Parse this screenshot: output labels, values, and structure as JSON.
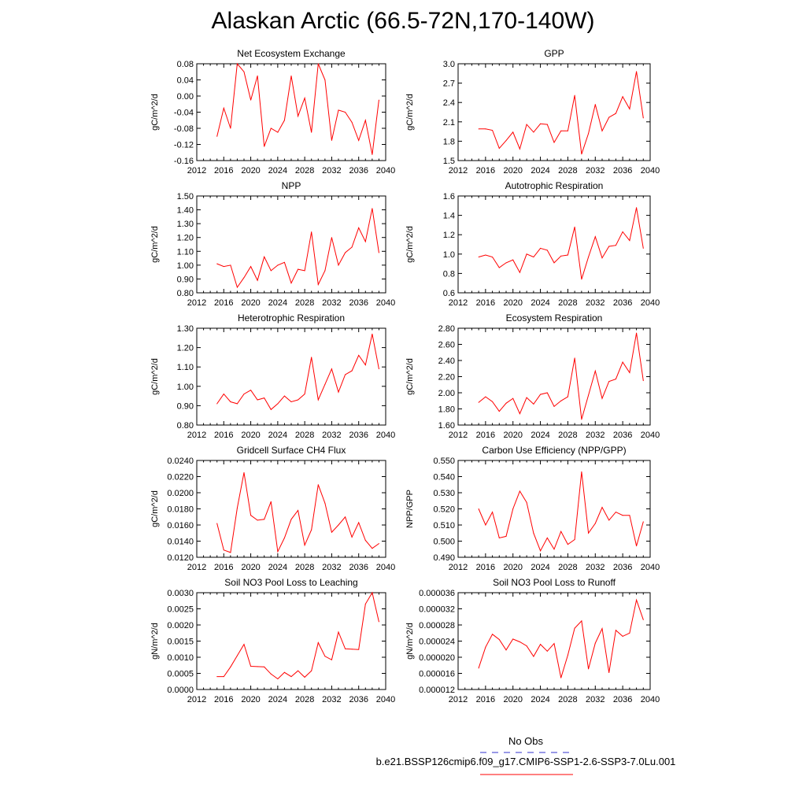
{
  "title": "Alaskan Arctic (66.5-72N,170-140W)",
  "colors": {
    "series": "#ff0000",
    "obs": "#3333cc",
    "axis": "#000000"
  },
  "legend": {
    "obs_label": "No Obs",
    "model_label": "b.e21.BSSP126cmip6.f09_g17.CMIP6-SSP1-2.6-SSP3-7.0Lu.001"
  },
  "chart_data": [
    {
      "type": "line",
      "title": "Net Ecosystem Exchange",
      "ylabel": "gC/m^2/d",
      "xlim": [
        2012,
        2040
      ],
      "ylim": [
        -0.16,
        0.08
      ],
      "xticks": [
        "2012",
        "2016",
        "2020",
        "2024",
        "2028",
        "2032",
        "2036",
        "2040"
      ],
      "yticks": [
        "-0.16",
        "-0.12",
        "-0.08",
        "-0.04",
        "0.00",
        "0.04",
        "0.08"
      ],
      "x": [
        2015,
        2016,
        2017,
        2018,
        2019,
        2020,
        2021,
        2022,
        2023,
        2024,
        2025,
        2026,
        2027,
        2028,
        2029,
        2030,
        2031,
        2032,
        2033,
        2034,
        2035,
        2036,
        2037,
        2038,
        2039
      ],
      "y": [
        -0.1,
        -0.03,
        -0.08,
        0.08,
        0.06,
        -0.01,
        0.05,
        -0.125,
        -0.08,
        -0.09,
        -0.06,
        0.05,
        -0.05,
        -0.005,
        -0.09,
        0.08,
        0.04,
        -0.11,
        -0.035,
        -0.04,
        -0.065,
        -0.11,
        -0.06,
        -0.145,
        -0.01
      ]
    },
    {
      "type": "line",
      "title": "GPP",
      "ylabel": "gC/m^2/d",
      "xlim": [
        2012,
        2040
      ],
      "ylim": [
        1.5,
        3.0
      ],
      "xticks": [
        "2012",
        "2016",
        "2020",
        "2024",
        "2028",
        "2032",
        "2036",
        "2040"
      ],
      "yticks": [
        "1.5",
        "1.8",
        "2.1",
        "2.4",
        "2.7",
        "3.0"
      ],
      "x": [
        2015,
        2016,
        2017,
        2018,
        2019,
        2020,
        2021,
        2022,
        2023,
        2024,
        2025,
        2026,
        2027,
        2028,
        2029,
        2030,
        2031,
        2032,
        2033,
        2034,
        2035,
        2036,
        2037,
        2038,
        2039
      ],
      "y": [
        1.99,
        1.99,
        1.97,
        1.69,
        1.81,
        1.94,
        1.68,
        2.06,
        1.94,
        2.07,
        2.06,
        1.78,
        1.96,
        1.96,
        2.51,
        1.6,
        1.92,
        2.37,
        1.96,
        2.17,
        2.23,
        2.49,
        2.3,
        2.88,
        2.16
      ]
    },
    {
      "type": "line",
      "title": "NPP",
      "ylabel": "gC/m^2/d",
      "xlim": [
        2012,
        2040
      ],
      "ylim": [
        0.8,
        1.5
      ],
      "xticks": [
        "2012",
        "2016",
        "2020",
        "2024",
        "2028",
        "2032",
        "2036",
        "2040"
      ],
      "yticks": [
        "0.80",
        "0.90",
        "1.00",
        "1.10",
        "1.20",
        "1.30",
        "1.40",
        "1.50"
      ],
      "x": [
        2015,
        2016,
        2017,
        2018,
        2019,
        2020,
        2021,
        2022,
        2023,
        2024,
        2025,
        2026,
        2027,
        2028,
        2029,
        2030,
        2031,
        2032,
        2033,
        2034,
        2035,
        2036,
        2037,
        2038,
        2039
      ],
      "y": [
        1.01,
        0.99,
        1.0,
        0.84,
        0.91,
        0.99,
        0.89,
        1.06,
        0.96,
        1.0,
        1.02,
        0.87,
        0.97,
        0.96,
        1.24,
        0.86,
        0.96,
        1.2,
        1.0,
        1.09,
        1.13,
        1.27,
        1.17,
        1.41,
        1.09
      ]
    },
    {
      "type": "line",
      "title": "Autotrophic Respiration",
      "ylabel": "gC/m^2/d",
      "xlim": [
        2012,
        2040
      ],
      "ylim": [
        0.6,
        1.6
      ],
      "xticks": [
        "2012",
        "2016",
        "2020",
        "2024",
        "2028",
        "2032",
        "2036",
        "2040"
      ],
      "yticks": [
        "0.6",
        "0.8",
        "1.0",
        "1.2",
        "1.4",
        "1.6"
      ],
      "x": [
        2015,
        2016,
        2017,
        2018,
        2019,
        2020,
        2021,
        2022,
        2023,
        2024,
        2025,
        2026,
        2027,
        2028,
        2029,
        2030,
        2031,
        2032,
        2033,
        2034,
        2035,
        2036,
        2037,
        2038,
        2039
      ],
      "y": [
        0.97,
        0.99,
        0.97,
        0.86,
        0.91,
        0.94,
        0.81,
        1.0,
        0.97,
        1.06,
        1.04,
        0.91,
        0.98,
        0.99,
        1.28,
        0.74,
        0.97,
        1.18,
        0.96,
        1.08,
        1.09,
        1.23,
        1.14,
        1.48,
        1.06
      ]
    },
    {
      "type": "line",
      "title": "Heterotrophic Respiration",
      "ylabel": "gC/m^2/d",
      "xlim": [
        2012,
        2040
      ],
      "ylim": [
        0.8,
        1.3
      ],
      "xticks": [
        "2012",
        "2016",
        "2020",
        "2024",
        "2028",
        "2032",
        "2036",
        "2040"
      ],
      "yticks": [
        "0.80",
        "0.90",
        "1.00",
        "1.10",
        "1.20",
        "1.30"
      ],
      "x": [
        2015,
        2016,
        2017,
        2018,
        2019,
        2020,
        2021,
        2022,
        2023,
        2024,
        2025,
        2026,
        2027,
        2028,
        2029,
        2030,
        2031,
        2032,
        2033,
        2034,
        2035,
        2036,
        2037,
        2038,
        2039
      ],
      "y": [
        0.91,
        0.96,
        0.92,
        0.91,
        0.96,
        0.98,
        0.93,
        0.94,
        0.88,
        0.91,
        0.95,
        0.92,
        0.93,
        0.96,
        1.15,
        0.93,
        1.01,
        1.09,
        0.97,
        1.06,
        1.08,
        1.16,
        1.11,
        1.27,
        1.09
      ]
    },
    {
      "type": "line",
      "title": "Ecosystem Respiration",
      "ylabel": "gC/m^2/d",
      "xlim": [
        2012,
        2040
      ],
      "ylim": [
        1.6,
        2.8
      ],
      "xticks": [
        "2012",
        "2016",
        "2020",
        "2024",
        "2028",
        "2032",
        "2036",
        "2040"
      ],
      "yticks": [
        "1.60",
        "1.80",
        "2.00",
        "2.20",
        "2.40",
        "2.60",
        "2.80"
      ],
      "x": [
        2015,
        2016,
        2017,
        2018,
        2019,
        2020,
        2021,
        2022,
        2023,
        2024,
        2025,
        2026,
        2027,
        2028,
        2029,
        2030,
        2031,
        2032,
        2033,
        2034,
        2035,
        2036,
        2037,
        2038,
        2039
      ],
      "y": [
        1.88,
        1.95,
        1.89,
        1.77,
        1.87,
        1.93,
        1.74,
        1.94,
        1.86,
        1.98,
        2.0,
        1.83,
        1.9,
        1.95,
        2.43,
        1.67,
        1.97,
        2.27,
        1.93,
        2.14,
        2.17,
        2.38,
        2.25,
        2.74,
        2.15
      ]
    },
    {
      "type": "line",
      "title": "Gridcell Surface CH4 Flux",
      "ylabel": "gC/m^2/d",
      "xlim": [
        2012,
        2040
      ],
      "ylim": [
        0.012,
        0.024
      ],
      "xticks": [
        "2012",
        "2016",
        "2020",
        "2024",
        "2028",
        "2032",
        "2036",
        "2040"
      ],
      "yticks": [
        "0.0120",
        "0.0140",
        "0.0160",
        "0.0180",
        "0.0200",
        "0.0220",
        "0.0240"
      ],
      "x": [
        2015,
        2016,
        2017,
        2018,
        2019,
        2020,
        2021,
        2022,
        2023,
        2024,
        2025,
        2026,
        2027,
        2028,
        2029,
        2030,
        2031,
        2032,
        2033,
        2034,
        2035,
        2036,
        2037,
        2038,
        2039
      ],
      "y": [
        0.0162,
        0.0129,
        0.0126,
        0.0181,
        0.0225,
        0.0172,
        0.0166,
        0.0167,
        0.0189,
        0.0127,
        0.0144,
        0.0167,
        0.0178,
        0.0135,
        0.0154,
        0.021,
        0.0187,
        0.0151,
        0.016,
        0.017,
        0.0145,
        0.0163,
        0.0141,
        0.0131,
        0.0137
      ]
    },
    {
      "type": "line",
      "title": "Carbon Use Efficiency (NPP/GPP)",
      "ylabel": "NPP/GPP",
      "xlim": [
        2012,
        2040
      ],
      "ylim": [
        0.49,
        0.55
      ],
      "xticks": [
        "2012",
        "2016",
        "2020",
        "2024",
        "2028",
        "2032",
        "2036",
        "2040"
      ],
      "yticks": [
        "0.490",
        "0.500",
        "0.510",
        "0.520",
        "0.530",
        "0.540",
        "0.550"
      ],
      "x": [
        2015,
        2016,
        2017,
        2018,
        2019,
        2020,
        2021,
        2022,
        2023,
        2024,
        2025,
        2026,
        2027,
        2028,
        2029,
        2030,
        2031,
        2032,
        2033,
        2034,
        2035,
        2036,
        2037,
        2038,
        2039
      ],
      "y": [
        0.52,
        0.51,
        0.518,
        0.502,
        0.503,
        0.52,
        0.531,
        0.524,
        0.505,
        0.494,
        0.502,
        0.495,
        0.506,
        0.498,
        0.501,
        0.543,
        0.505,
        0.511,
        0.521,
        0.513,
        0.518,
        0.516,
        0.516,
        0.497,
        0.512
      ]
    },
    {
      "type": "line",
      "title": "Soil NO3 Pool Loss to Leaching",
      "ylabel": "gN/m^2/d",
      "xlim": [
        2012,
        2040
      ],
      "ylim": [
        0.0,
        0.003
      ],
      "xticks": [
        "2012",
        "2016",
        "2020",
        "2024",
        "2028",
        "2032",
        "2036",
        "2040"
      ],
      "yticks": [
        "0.0000",
        "0.0005",
        "0.0010",
        "0.0015",
        "0.0020",
        "0.0025",
        "0.0030"
      ],
      "x": [
        2015,
        2016,
        2017,
        2018,
        2019,
        2020,
        2021,
        2022,
        2023,
        2024,
        2025,
        2026,
        2027,
        2028,
        2029,
        2030,
        2031,
        2032,
        2033,
        2034,
        2035,
        2036,
        2037,
        2038,
        2039
      ],
      "y": [
        0.0004,
        0.0004,
        0.0007,
        0.00105,
        0.0014,
        0.00072,
        0.00071,
        0.0007,
        0.00048,
        0.00033,
        0.00053,
        0.0004,
        0.00058,
        0.00038,
        0.00058,
        0.00145,
        0.00103,
        0.00092,
        0.00178,
        0.00126,
        0.00125,
        0.00124,
        0.00265,
        0.003,
        0.0021
      ]
    },
    {
      "type": "line",
      "title": "Soil NO3 Pool Loss to Runoff",
      "ylabel": "gN/m^2/d",
      "xlim": [
        2012,
        2040
      ],
      "ylim": [
        1.2e-05,
        3.6e-05
      ],
      "xticks": [
        "2012",
        "2016",
        "2020",
        "2024",
        "2028",
        "2032",
        "2036",
        "2040"
      ],
      "yticks": [
        "0.000012",
        "0.000016",
        "0.000020",
        "0.000024",
        "0.000028",
        "0.000032",
        "0.000036"
      ],
      "x": [
        2015,
        2016,
        2017,
        2018,
        2019,
        2020,
        2021,
        2022,
        2023,
        2024,
        2025,
        2026,
        2027,
        2028,
        2029,
        2030,
        2031,
        2032,
        2033,
        2034,
        2035,
        2036,
        2037,
        2038,
        2039
      ],
      "y": [
        1.73e-05,
        2.25e-05,
        2.57e-05,
        2.44e-05,
        2.18e-05,
        2.45e-05,
        2.38e-05,
        2.28e-05,
        2.02e-05,
        2.32e-05,
        2.15e-05,
        2.34e-05,
        1.49e-05,
        2.05e-05,
        2.72e-05,
        2.9e-05,
        1.71e-05,
        2.35e-05,
        2.71e-05,
        1.62e-05,
        2.67e-05,
        2.52e-05,
        2.6e-05,
        3.42e-05,
        2.93e-05
      ]
    }
  ]
}
